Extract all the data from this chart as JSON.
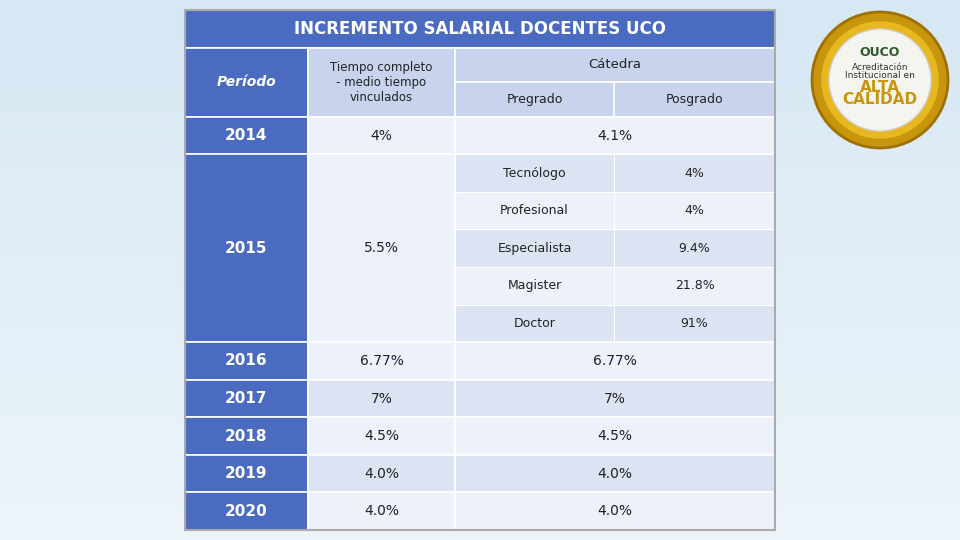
{
  "title": "INCREMENTO SALARIAL DOCENTES UCO",
  "title_bg": "#4a6bbf",
  "title_color": "#ffffff",
  "header_bg_dark": "#4a6bbf",
  "header_bg_light": "#c8d4ee",
  "row_bg_dark": "#4a6bbf",
  "row_bg_light": "#dce4f4",
  "row_bg_white": "#edf1fa",
  "text_dark": "#ffffff",
  "text_light": "#222222",
  "border_color": "#ffffff",
  "col_header1": "Período",
  "col_header2": "Tiempo completo\n- medio tiempo\nvinculados",
  "col_header3": "Cátedra",
  "col_sub3a": "Pregrado",
  "col_sub3b": "Posgrado",
  "rows_simple": [
    {
      "periodo": "2014",
      "tc": "4%",
      "cat": "4.1%"
    },
    {
      "periodo": "2016",
      "tc": "6.77%",
      "cat": "6.77%"
    },
    {
      "periodo": "2017",
      "tc": "7%",
      "cat": "7%"
    },
    {
      "periodo": "2018",
      "tc": "4.5%",
      "cat": "4.5%"
    },
    {
      "periodo": "2019",
      "tc": "4.0%",
      "cat": "4.0%"
    },
    {
      "periodo": "2020",
      "tc": "4.0%",
      "cat": "4.0%"
    }
  ],
  "row_2015": {
    "periodo": "2015",
    "tc": "5.5%",
    "sub_rows": [
      {
        "pregrado": "Tecnólogo",
        "posgrado": "4%"
      },
      {
        "pregrado": "Profesional",
        "posgrado": "4%"
      },
      {
        "pregrado": "Especialista",
        "posgrado": "9.4%"
      },
      {
        "pregrado": "Magister",
        "posgrado": "21.8%"
      },
      {
        "pregrado": "Doctor",
        "posgrado": "91%"
      }
    ]
  },
  "bg_color_top": "#dceaf5",
  "bg_color_bot": "#eef5fb",
  "figsize": [
    9.6,
    5.4
  ],
  "dpi": 100
}
